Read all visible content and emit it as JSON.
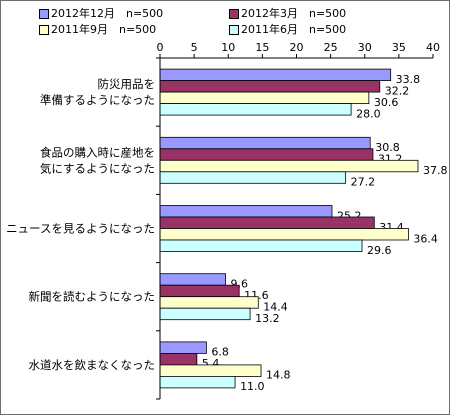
{
  "chart_data": {
    "type": "bar",
    "orientation": "horizontal",
    "categories": [
      [
        "防災用品を",
        "準備するようになった"
      ],
      [
        "食品の購入時に産地を",
        "気にするようになった"
      ],
      [
        "ニュースを見るようになった"
      ],
      [
        "新聞を読むようになった"
      ],
      [
        "水道水を飲まなくなった"
      ]
    ],
    "series": [
      {
        "name": "2012年12月　n=500",
        "color": "#9999ff",
        "values": [
          33.8,
          30.8,
          25.2,
          9.6,
          6.8
        ]
      },
      {
        "name": "2012年3月　n=500",
        "color": "#993366",
        "values": [
          32.2,
          31.2,
          31.4,
          11.6,
          5.4
        ]
      },
      {
        "name": "2011年9月　n=500",
        "color": "#ffffcc",
        "values": [
          30.6,
          37.8,
          36.4,
          14.4,
          14.8
        ]
      },
      {
        "name": "2011年6月　n=500",
        "color": "#ccffff",
        "values": [
          28.0,
          27.2,
          29.6,
          13.2,
          11.0
        ]
      }
    ],
    "xticks": [
      "0",
      "5",
      "10",
      "15",
      "20",
      "25",
      "30",
      "35",
      "40"
    ],
    "xlim": [
      0,
      40
    ],
    "value_labels": [
      [
        "33.8",
        "30.8",
        "25.2",
        "9.6",
        "6.8"
      ],
      [
        "32.2",
        "31.2",
        "31.4",
        "11.6",
        "5.4"
      ],
      [
        "30.6",
        "37.8",
        "36.4",
        "14.4",
        "14.8"
      ],
      [
        "28.0",
        "27.2",
        "29.6",
        "13.2",
        "11.0"
      ]
    ],
    "grid": false,
    "legend": "top",
    "title": "",
    "xlabel": "",
    "ylabel": ""
  }
}
